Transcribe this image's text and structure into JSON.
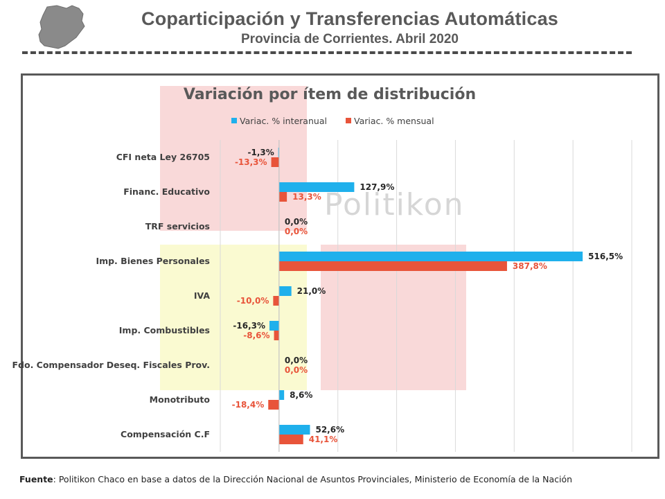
{
  "header": {
    "title": "Coparticipación y Transferencias Automáticas",
    "subtitle": "Provincia de Corrientes. Abril 2020"
  },
  "footer": {
    "label": "Fuente",
    "text": ": Politikon Chaco en base a datos de la Dirección Nacional de Asuntos Provinciales, Ministerio de Economía de la Nación"
  },
  "watermark": "Politikon",
  "colors": {
    "interanual": "#1FB0EC",
    "mensual": "#E8543A",
    "label_interanual": "#262626",
    "label_mensual": "#E8543A",
    "band_pink": "#F7CCCC",
    "band_yellow": "#FAFACC"
  },
  "chart_data": {
    "type": "bar",
    "orientation": "horizontal",
    "title": "Variación por ítem de distribución",
    "categories": [
      "CFI neta Ley 26705",
      "Financ. Educativo",
      "TRF servicios",
      "Imp. Bienes Personales",
      "IVA",
      "Imp. Combustibles",
      "Fdo. Compensador Deseq. Fiscales Prov.",
      "Monotributo",
      "Compensación C.F"
    ],
    "series": [
      {
        "name": "Variac. % interanual",
        "values": [
          -1.3,
          127.9,
          0.0,
          516.5,
          21.0,
          -16.3,
          0.0,
          8.6,
          52.6
        ],
        "labels": [
          "-1,3%",
          "127,9%",
          "0,0%",
          "516,5%",
          "21,0%",
          "-16,3%",
          "0,0%",
          "8,6%",
          "52,6%"
        ]
      },
      {
        "name": "Variac. % mensual",
        "values": [
          -13.3,
          13.3,
          0.0,
          387.8,
          -10.0,
          -8.6,
          0.0,
          -18.4,
          41.1
        ],
        "labels": [
          "-13,3%",
          "13,3%",
          "0,0%",
          "387,8%",
          "-10,0%",
          "-8,6%",
          "0,0%",
          "-18,4%",
          "41,1%"
        ]
      }
    ],
    "xlim": [
      -100,
      600
    ],
    "grid": true,
    "legend": "top"
  }
}
